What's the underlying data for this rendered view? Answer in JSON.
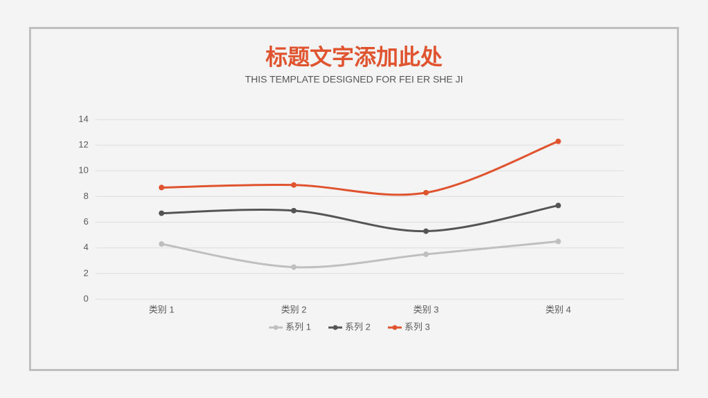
{
  "chart_data": {
    "type": "line",
    "title": "标题文字添加此处",
    "subtitle": "THIS TEMPLATE DESIGNED FOR FEI ER SHE JI",
    "categories": [
      "类别 1",
      "类别 2",
      "类别 3",
      "类别 4"
    ],
    "series": [
      {
        "name": "系列 1",
        "color": "#bfbfbf",
        "values": [
          4.3,
          2.5,
          3.5,
          4.5
        ]
      },
      {
        "name": "系列 2",
        "color": "#555555",
        "values": [
          6.7,
          6.9,
          5.3,
          7.3
        ]
      },
      {
        "name": "系列 3",
        "color": "#e0532f",
        "values": [
          8.7,
          8.9,
          8.3,
          12.3
        ]
      }
    ],
    "ylim": [
      0,
      14
    ],
    "yticks": [
      0,
      2,
      4,
      6,
      8,
      10,
      12,
      14
    ],
    "grid": true,
    "smooth": true,
    "legend": "bottom"
  }
}
